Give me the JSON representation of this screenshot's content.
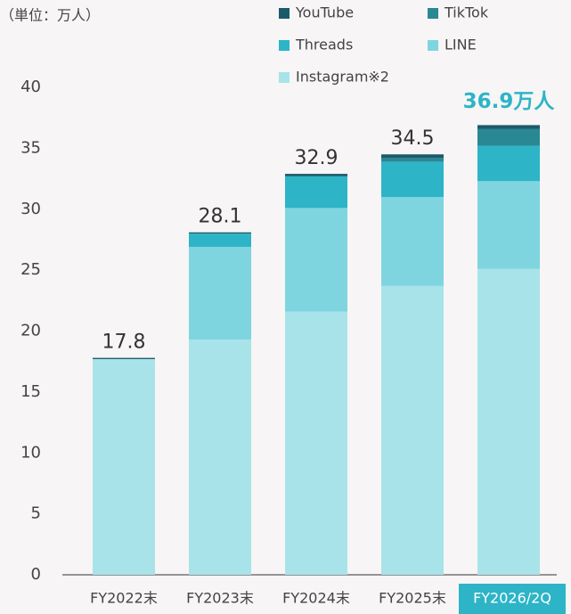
{
  "chart_data": {
    "type": "stacked_bar",
    "unit_label": "（単位：万人）",
    "categories": [
      "FY2022末",
      "FY2023末",
      "FY2024末",
      "FY2025末",
      "FY2026/2Q"
    ],
    "highlight_index": 4,
    "series": [
      {
        "name": "YouTube",
        "color": "#1b5b69",
        "values": [
          0.1,
          0.1,
          0.2,
          0.3,
          0.3
        ]
      },
      {
        "name": "TikTok",
        "color": "#2a8794",
        "values": [
          0,
          0,
          0,
          0.3,
          1.4
        ]
      },
      {
        "name": "Threads",
        "color": "#2db4c7",
        "values": [
          0,
          1.1,
          2.6,
          2.9,
          2.9
        ]
      },
      {
        "name": "LINE",
        "color": "#7fd5df",
        "values": [
          0,
          7.6,
          8.5,
          7.3,
          7.2
        ]
      },
      {
        "name": "Instagram※2",
        "color": "#a8e3e9",
        "values": [
          17.7,
          19.3,
          21.6,
          23.7,
          25.1
        ]
      }
    ],
    "totals": [
      17.8,
      28.1,
      32.9,
      34.5,
      36.9
    ],
    "total_labels": [
      "17.8",
      "28.1",
      "32.9",
      "34.5",
      "36.9万人"
    ],
    "ylim": [
      0,
      40
    ],
    "yticks": [
      0,
      5,
      10,
      15,
      20,
      25,
      30,
      35,
      40
    ],
    "grid": false
  }
}
